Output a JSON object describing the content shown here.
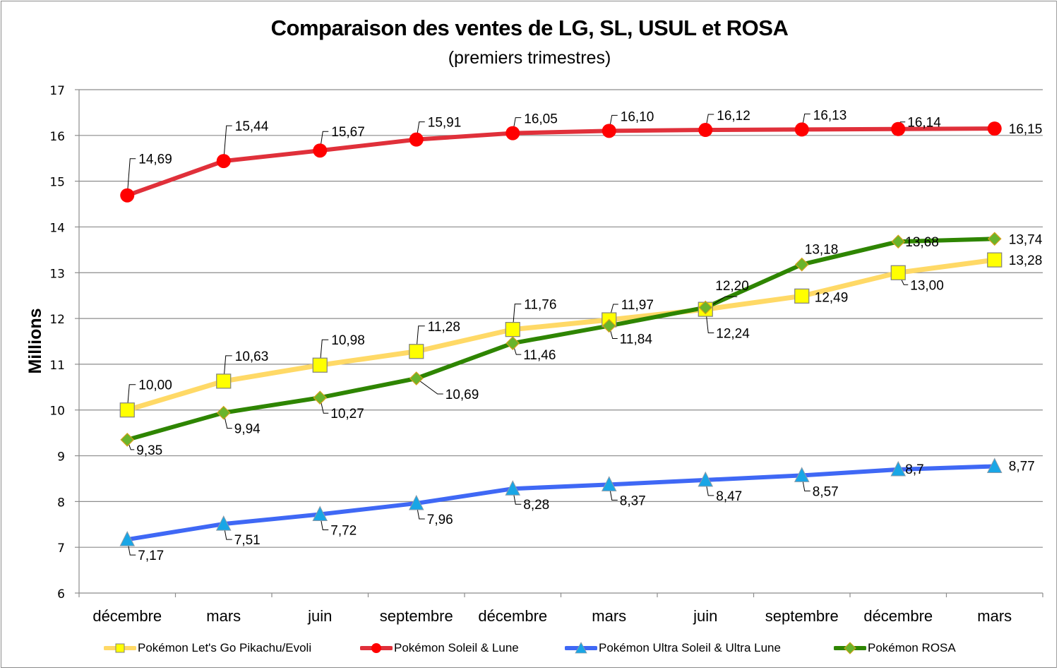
{
  "chart_data": {
    "type": "line",
    "title": "Comparaison des ventes de LG, SL, USUL et ROSA",
    "subtitle": "(premiers trimestres)",
    "xlabel": "",
    "ylabel": "Millions",
    "ylim": [
      6,
      17
    ],
    "yticks": [
      "6",
      "7",
      "8",
      "9",
      "10",
      "11",
      "12",
      "13",
      "14",
      "15",
      "16",
      "17"
    ],
    "categories": [
      "décembre",
      "mars",
      "juin",
      "septembre",
      "décembre",
      "mars",
      "juin",
      "septembre",
      "décembre",
      "mars"
    ],
    "grid": true,
    "legend_position": "bottom",
    "series": [
      {
        "name": "Pokémon Let's Go Pikachu/Evoli",
        "line_color": "#FFD966",
        "marker": "square",
        "marker_color": "#FFFF00",
        "values": [
          10.0,
          10.63,
          10.98,
          11.28,
          11.76,
          11.97,
          12.2,
          12.49,
          13.0,
          13.28
        ],
        "labels": [
          "10,00",
          "10,63",
          "10,98",
          "11,28",
          "11,76",
          "11,97",
          "12,20",
          "12,49",
          "13,00",
          "13,28"
        ]
      },
      {
        "name": "Pokémon Soleil & Lune",
        "line_color": "#E0303A",
        "marker": "circle",
        "marker_color": "#FF0000",
        "values": [
          14.69,
          15.44,
          15.67,
          15.91,
          16.05,
          16.1,
          16.12,
          16.13,
          16.14,
          16.15
        ],
        "labels": [
          "14,69",
          "15,44",
          "15,67",
          "15,91",
          "16,05",
          "16,10",
          "16,12",
          "16,13",
          "16,14",
          "16,15"
        ]
      },
      {
        "name": "Pokémon Ultra Soleil & Ultra Lune",
        "line_color": "#3F68F5",
        "marker": "triangle",
        "marker_color": "#19A6E6",
        "values": [
          7.17,
          7.51,
          7.72,
          7.96,
          8.28,
          8.37,
          8.47,
          8.57,
          8.7,
          8.77
        ],
        "labels": [
          "7,17",
          "7,51",
          "7,72",
          "7,96",
          "8,28",
          "8,37",
          "8,47",
          "8,57",
          "8,7",
          "8,77"
        ]
      },
      {
        "name": "Pokémon ROSA",
        "line_color": "#2E8500",
        "marker": "diamond",
        "marker_color": "#6AB42C",
        "values": [
          9.35,
          9.94,
          10.27,
          10.69,
          11.46,
          11.84,
          12.24,
          13.18,
          13.68,
          13.74
        ],
        "labels": [
          "9,35",
          "9,94",
          "10,27",
          "10,69",
          "11,46",
          "11,84",
          "12,24",
          "13,18",
          "13,68",
          "13,74"
        ]
      }
    ]
  }
}
